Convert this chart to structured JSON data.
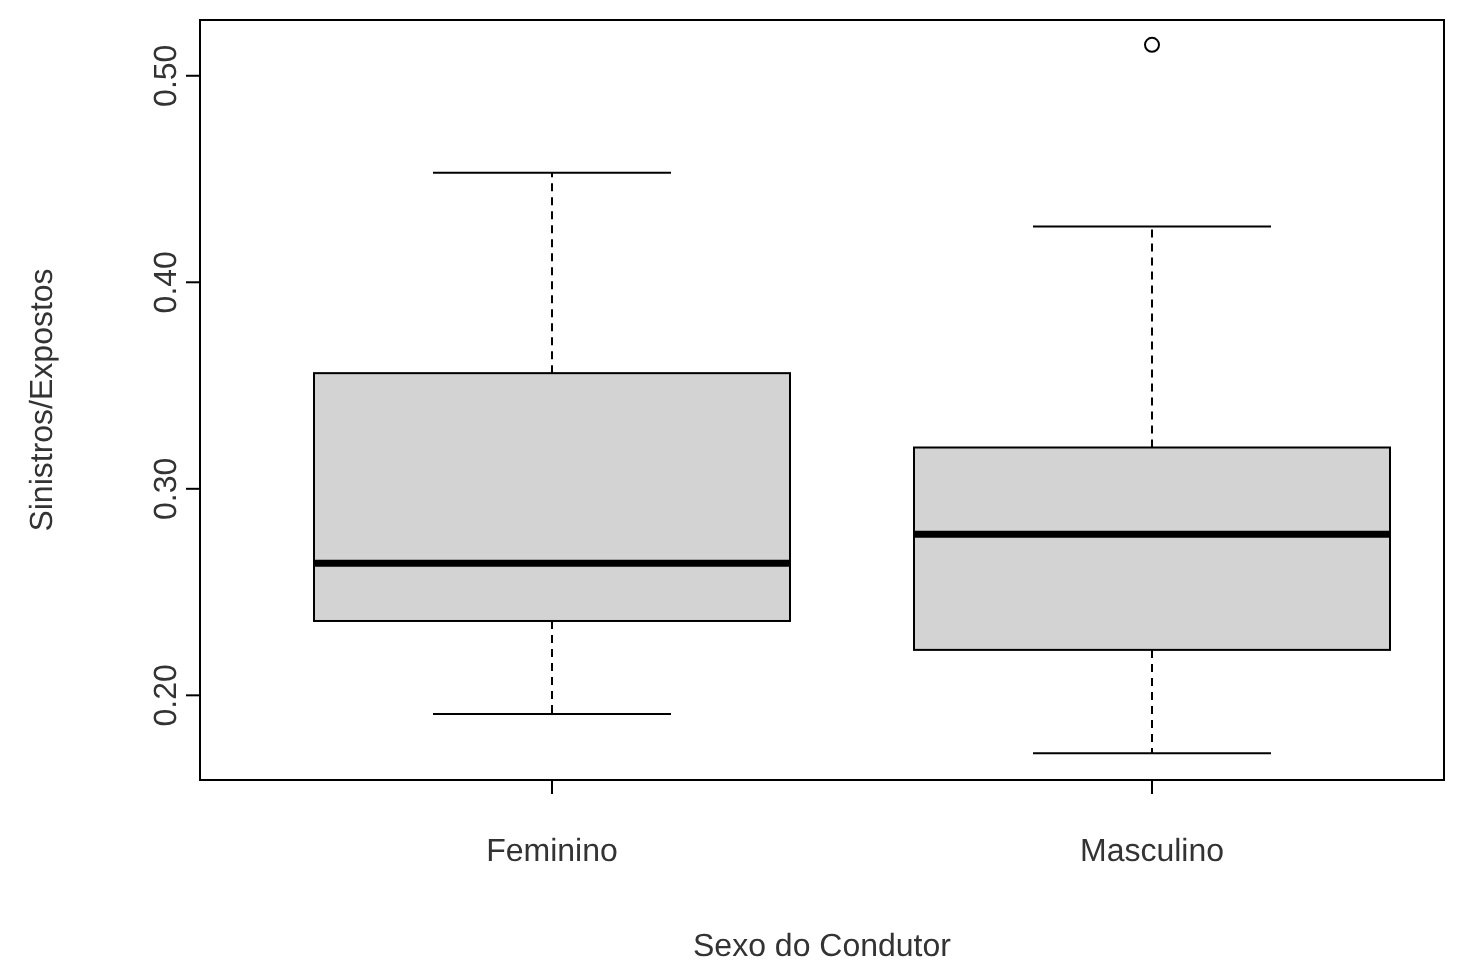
{
  "chart_data": {
    "type": "box",
    "xlabel": "Sexo do Condutor",
    "ylabel": "Sinistros/Expostos",
    "categories": [
      "Feminino",
      "Masculino"
    ],
    "boxes": [
      {
        "low": 0.191,
        "q1": 0.236,
        "median": 0.264,
        "q3": 0.356,
        "high": 0.453
      },
      {
        "low": 0.172,
        "q1": 0.222,
        "median": 0.278,
        "q3": 0.32,
        "high": 0.427,
        "outliers": [
          0.515
        ]
      }
    ],
    "color": "#d3d3d3",
    "ylim": [
      0.159,
      0.527
    ],
    "yticks": [
      {
        "value": 0.2,
        "label": "0.20"
      },
      {
        "value": 0.3,
        "label": "0.30"
      },
      {
        "value": 0.4,
        "label": "0.40"
      },
      {
        "value": 0.5,
        "label": "0.50"
      }
    ],
    "grid": false
  }
}
